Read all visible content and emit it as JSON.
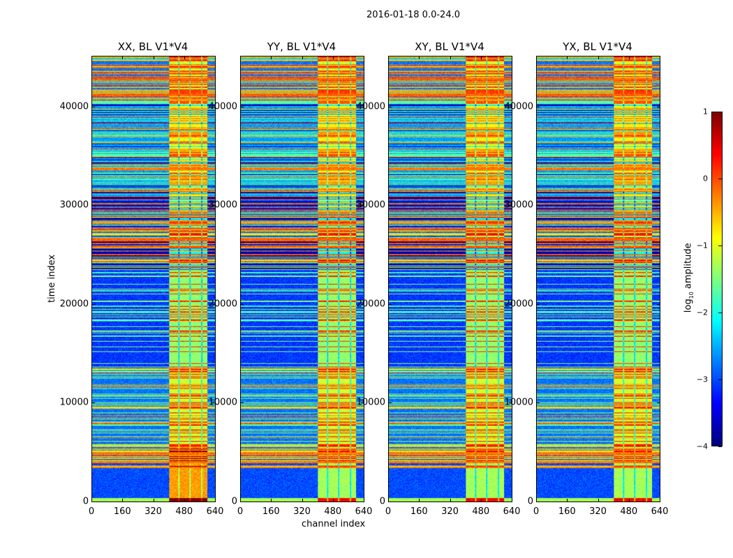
{
  "chart_data": {
    "type": "heatmap",
    "suptitle": "2016-01-18 0.0-24.0",
    "panels": [
      {
        "title": "XX, BL V1*V4"
      },
      {
        "title": "YY, BL V1*V4"
      },
      {
        "title": "XY, BL V1*V4"
      },
      {
        "title": "YX, BL V1*V4"
      }
    ],
    "xlabel": "channel index",
    "ylabel": "time index",
    "xlim": [
      0,
      640
    ],
    "ylim": [
      0,
      45200
    ],
    "xticks": [
      "0",
      "160",
      "320",
      "480",
      "640"
    ],
    "xtick_values": [
      0,
      160,
      320,
      480,
      640
    ],
    "yticks": [
      "0",
      "10000",
      "20000",
      "30000",
      "40000"
    ],
    "ytick_values": [
      0,
      10000,
      20000,
      30000,
      40000
    ],
    "colormap": "jet",
    "colorbar": {
      "label_parts": [
        "log",
        "10",
        " amplitude"
      ],
      "range": [
        -4,
        1
      ],
      "ticks": [
        "1",
        "0",
        "−1",
        "−2",
        "−3",
        "−4"
      ],
      "tick_values": [
        1,
        0,
        -1,
        -2,
        -3,
        -4
      ]
    },
    "active_channel_range": [
      400,
      600
    ]
  }
}
